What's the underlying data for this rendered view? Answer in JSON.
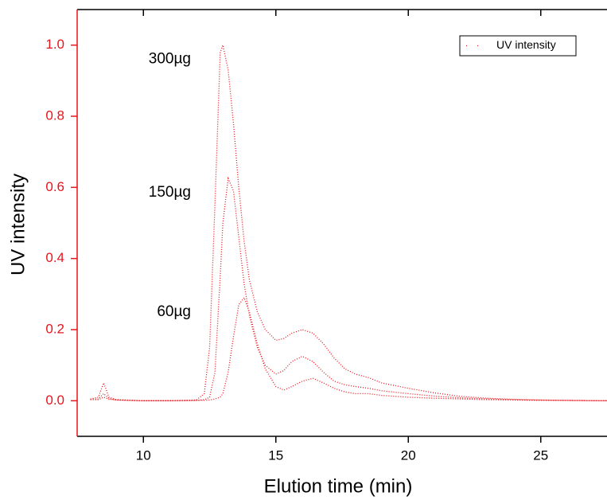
{
  "chart_data": {
    "type": "line",
    "xlabel": "Elution time (min)",
    "ylabel": "UV intensity",
    "x": [
      8,
      8.3,
      8.5,
      8.7,
      9,
      10,
      11,
      12,
      12.3,
      12.5,
      12.7,
      12.9,
      13.0,
      13.2,
      13.4,
      13.6,
      13.8,
      14.0,
      14.3,
      14.6,
      15.0,
      15.3,
      15.6,
      16.0,
      16.4,
      16.8,
      17.2,
      17.6,
      18.0,
      18.5,
      19.0,
      20.0,
      21.0,
      22.0,
      23.0,
      24.0,
      25.0,
      26.0,
      27.5
    ],
    "series": [
      {
        "name": "UV intensity",
        "label": "300µg",
        "color": "#e8141c",
        "values": [
          0.005,
          0.01,
          0.05,
          0.01,
          0.003,
          0,
          0,
          0.002,
          0.02,
          0.15,
          0.55,
          0.98,
          1.0,
          0.93,
          0.78,
          0.6,
          0.45,
          0.34,
          0.25,
          0.2,
          0.17,
          0.175,
          0.19,
          0.2,
          0.19,
          0.16,
          0.12,
          0.09,
          0.075,
          0.065,
          0.05,
          0.035,
          0.022,
          0.012,
          0.007,
          0.004,
          0.002,
          0.001,
          0
        ]
      },
      {
        "label": "150µg",
        "color": "#e8141c",
        "values": [
          0.004,
          0.005,
          0.02,
          0.006,
          0.002,
          0,
          0,
          0.001,
          0.003,
          0.01,
          0.08,
          0.35,
          0.5,
          0.625,
          0.59,
          0.46,
          0.33,
          0.24,
          0.15,
          0.1,
          0.075,
          0.085,
          0.11,
          0.125,
          0.11,
          0.08,
          0.055,
          0.045,
          0.04,
          0.035,
          0.028,
          0.02,
          0.013,
          0.008,
          0.005,
          0.003,
          0.002,
          0.001,
          0
        ]
      },
      {
        "label": "60µg",
        "color": "#e8141c",
        "values": [
          0.003,
          0.003,
          0.01,
          0.004,
          0.002,
          0,
          0,
          0.001,
          0.001,
          0.002,
          0.005,
          0.01,
          0.02,
          0.08,
          0.18,
          0.27,
          0.29,
          0.25,
          0.16,
          0.09,
          0.04,
          0.03,
          0.04,
          0.055,
          0.063,
          0.05,
          0.035,
          0.025,
          0.02,
          0.02,
          0.015,
          0.01,
          0.007,
          0.005,
          0.003,
          0.002,
          0.001,
          0.001,
          0
        ]
      }
    ],
    "xlim": [
      7.5,
      27.5
    ],
    "xticks": [
      10,
      15,
      20,
      25
    ],
    "ylim": [
      -0.1,
      1.1
    ],
    "yticks": [
      {
        "value": 0,
        "label": "0.0"
      },
      {
        "value": 0.2,
        "label": "0.2"
      },
      {
        "value": 0.4,
        "label": "0.4"
      },
      {
        "value": 0.6,
        "label": "0.6"
      },
      {
        "value": 0.8,
        "label": "0.8"
      },
      {
        "value": 1.0,
        "label": "1.0"
      }
    ],
    "y_axis_color": "#e8141c",
    "legend": "top-right",
    "grid": false
  }
}
